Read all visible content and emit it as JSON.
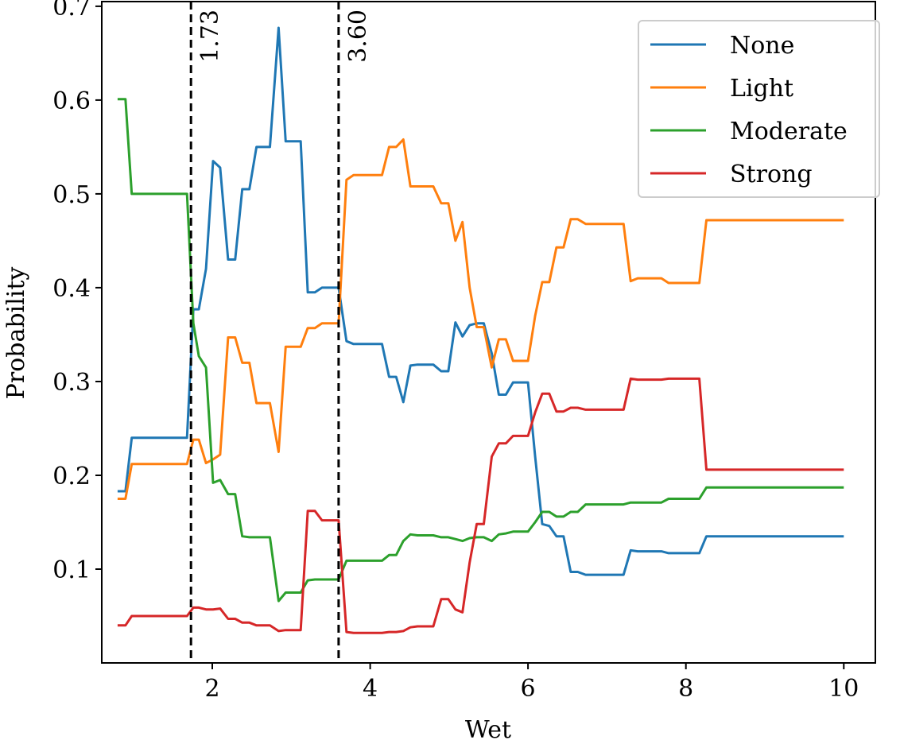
{
  "chart_data": {
    "type": "line",
    "title": "",
    "xlabel": "Wet",
    "ylabel": "Probability",
    "xlim": [
      0.6,
      10.4
    ],
    "ylim": [
      0.0,
      0.705
    ],
    "grid": false,
    "legend_position": "top-right",
    "x_ticks": [
      {
        "value": 2,
        "label": "2"
      },
      {
        "value": 4,
        "label": "4"
      },
      {
        "value": 6,
        "label": "6"
      },
      {
        "value": 8,
        "label": "8"
      },
      {
        "value": 10,
        "label": "10"
      }
    ],
    "y_ticks": [
      {
        "value": 0.1,
        "label": "0.1"
      },
      {
        "value": 0.2,
        "label": "0.2"
      },
      {
        "value": 0.3,
        "label": "0.3"
      },
      {
        "value": 0.4,
        "label": "0.4"
      },
      {
        "value": 0.5,
        "label": "0.5"
      },
      {
        "value": 0.6,
        "label": "0.6"
      },
      {
        "value": 0.7,
        "label": "0.7"
      }
    ],
    "vlines": [
      {
        "x": 1.73,
        "label": "1.73",
        "color": "#000000",
        "style": "dashed"
      },
      {
        "x": 3.6,
        "label": "3.60",
        "color": "#000000",
        "style": "dashed"
      }
    ],
    "series": [
      {
        "name": "None",
        "color": "#1f77b4",
        "points": [
          [
            0.8,
            0.183
          ],
          [
            0.9,
            0.183
          ],
          [
            0.98,
            0.24
          ],
          [
            1.68,
            0.24
          ],
          [
            1.76,
            0.377
          ],
          [
            1.83,
            0.377
          ],
          [
            1.92,
            0.42
          ],
          [
            2.01,
            0.535
          ],
          [
            2.1,
            0.528
          ],
          [
            2.2,
            0.43
          ],
          [
            2.29,
            0.43
          ],
          [
            2.38,
            0.505
          ],
          [
            2.47,
            0.505
          ],
          [
            2.56,
            0.55
          ],
          [
            2.73,
            0.55
          ],
          [
            2.84,
            0.677
          ],
          [
            2.93,
            0.556
          ],
          [
            3.12,
            0.556
          ],
          [
            3.21,
            0.395
          ],
          [
            3.3,
            0.395
          ],
          [
            3.39,
            0.4
          ],
          [
            3.6,
            0.4
          ],
          [
            3.7,
            0.343
          ],
          [
            3.79,
            0.34
          ],
          [
            4.15,
            0.34
          ],
          [
            4.24,
            0.305
          ],
          [
            4.33,
            0.305
          ],
          [
            4.42,
            0.278
          ],
          [
            4.51,
            0.317
          ],
          [
            4.6,
            0.318
          ],
          [
            4.8,
            0.318
          ],
          [
            4.9,
            0.311
          ],
          [
            4.99,
            0.311
          ],
          [
            5.08,
            0.363
          ],
          [
            5.17,
            0.348
          ],
          [
            5.26,
            0.36
          ],
          [
            5.35,
            0.362
          ],
          [
            5.44,
            0.362
          ],
          [
            5.54,
            0.33
          ],
          [
            5.63,
            0.286
          ],
          [
            5.72,
            0.286
          ],
          [
            5.81,
            0.299
          ],
          [
            6.0,
            0.299
          ],
          [
            6.09,
            0.22
          ],
          [
            6.18,
            0.148
          ],
          [
            6.27,
            0.146
          ],
          [
            6.36,
            0.135
          ],
          [
            6.45,
            0.135
          ],
          [
            6.54,
            0.097
          ],
          [
            6.63,
            0.097
          ],
          [
            6.73,
            0.094
          ],
          [
            7.21,
            0.094
          ],
          [
            7.3,
            0.12
          ],
          [
            7.39,
            0.119
          ],
          [
            7.69,
            0.119
          ],
          [
            7.78,
            0.117
          ],
          [
            8.17,
            0.117
          ],
          [
            8.26,
            0.135
          ],
          [
            10.0,
            0.135
          ]
        ]
      },
      {
        "name": "Light",
        "color": "#ff7f0e",
        "points": [
          [
            0.8,
            0.175
          ],
          [
            0.9,
            0.175
          ],
          [
            0.98,
            0.212
          ],
          [
            1.68,
            0.212
          ],
          [
            1.76,
            0.238
          ],
          [
            1.83,
            0.238
          ],
          [
            1.92,
            0.213
          ],
          [
            2.01,
            0.217
          ],
          [
            2.1,
            0.222
          ],
          [
            2.2,
            0.347
          ],
          [
            2.29,
            0.347
          ],
          [
            2.38,
            0.32
          ],
          [
            2.47,
            0.32
          ],
          [
            2.56,
            0.277
          ],
          [
            2.73,
            0.277
          ],
          [
            2.84,
            0.225
          ],
          [
            2.93,
            0.337
          ],
          [
            3.12,
            0.337
          ],
          [
            3.21,
            0.357
          ],
          [
            3.3,
            0.357
          ],
          [
            3.39,
            0.362
          ],
          [
            3.6,
            0.362
          ],
          [
            3.7,
            0.515
          ],
          [
            3.79,
            0.52
          ],
          [
            4.15,
            0.52
          ],
          [
            4.24,
            0.55
          ],
          [
            4.33,
            0.55
          ],
          [
            4.42,
            0.558
          ],
          [
            4.51,
            0.508
          ],
          [
            4.6,
            0.508
          ],
          [
            4.8,
            0.508
          ],
          [
            4.9,
            0.49
          ],
          [
            4.99,
            0.49
          ],
          [
            5.08,
            0.45
          ],
          [
            5.17,
            0.47
          ],
          [
            5.26,
            0.4
          ],
          [
            5.35,
            0.358
          ],
          [
            5.44,
            0.358
          ],
          [
            5.54,
            0.315
          ],
          [
            5.63,
            0.345
          ],
          [
            5.72,
            0.345
          ],
          [
            5.81,
            0.322
          ],
          [
            6.0,
            0.322
          ],
          [
            6.09,
            0.37
          ],
          [
            6.18,
            0.406
          ],
          [
            6.27,
            0.406
          ],
          [
            6.36,
            0.443
          ],
          [
            6.45,
            0.443
          ],
          [
            6.54,
            0.473
          ],
          [
            6.63,
            0.473
          ],
          [
            6.73,
            0.468
          ],
          [
            7.21,
            0.468
          ],
          [
            7.3,
            0.407
          ],
          [
            7.39,
            0.41
          ],
          [
            7.69,
            0.41
          ],
          [
            7.78,
            0.405
          ],
          [
            8.17,
            0.405
          ],
          [
            8.26,
            0.472
          ],
          [
            10.0,
            0.472
          ]
        ]
      },
      {
        "name": "Moderate",
        "color": "#2ca02c",
        "points": [
          [
            0.8,
            0.601
          ],
          [
            0.9,
            0.601
          ],
          [
            0.98,
            0.5
          ],
          [
            1.68,
            0.5
          ],
          [
            1.76,
            0.362
          ],
          [
            1.83,
            0.327
          ],
          [
            1.92,
            0.315
          ],
          [
            2.01,
            0.192
          ],
          [
            2.1,
            0.195
          ],
          [
            2.2,
            0.18
          ],
          [
            2.29,
            0.18
          ],
          [
            2.38,
            0.135
          ],
          [
            2.47,
            0.134
          ],
          [
            2.56,
            0.134
          ],
          [
            2.73,
            0.134
          ],
          [
            2.84,
            0.066
          ],
          [
            2.93,
            0.075
          ],
          [
            3.12,
            0.075
          ],
          [
            3.21,
            0.088
          ],
          [
            3.3,
            0.089
          ],
          [
            3.39,
            0.089
          ],
          [
            3.6,
            0.089
          ],
          [
            3.7,
            0.109
          ],
          [
            3.79,
            0.109
          ],
          [
            4.15,
            0.109
          ],
          [
            4.24,
            0.115
          ],
          [
            4.33,
            0.115
          ],
          [
            4.42,
            0.13
          ],
          [
            4.51,
            0.137
          ],
          [
            4.6,
            0.136
          ],
          [
            4.8,
            0.136
          ],
          [
            4.9,
            0.134
          ],
          [
            4.99,
            0.134
          ],
          [
            5.08,
            0.132
          ],
          [
            5.17,
            0.13
          ],
          [
            5.26,
            0.133
          ],
          [
            5.35,
            0.134
          ],
          [
            5.44,
            0.134
          ],
          [
            5.54,
            0.13
          ],
          [
            5.63,
            0.137
          ],
          [
            5.72,
            0.138
          ],
          [
            5.81,
            0.14
          ],
          [
            6.0,
            0.14
          ],
          [
            6.09,
            0.15
          ],
          [
            6.18,
            0.161
          ],
          [
            6.27,
            0.161
          ],
          [
            6.36,
            0.156
          ],
          [
            6.45,
            0.156
          ],
          [
            6.54,
            0.161
          ],
          [
            6.63,
            0.161
          ],
          [
            6.73,
            0.169
          ],
          [
            7.21,
            0.169
          ],
          [
            7.3,
            0.171
          ],
          [
            7.39,
            0.171
          ],
          [
            7.69,
            0.171
          ],
          [
            7.78,
            0.175
          ],
          [
            8.17,
            0.175
          ],
          [
            8.26,
            0.187
          ],
          [
            10.0,
            0.187
          ]
        ]
      },
      {
        "name": "Strong",
        "color": "#d62728",
        "points": [
          [
            0.8,
            0.04
          ],
          [
            0.9,
            0.04
          ],
          [
            0.98,
            0.05
          ],
          [
            1.68,
            0.05
          ],
          [
            1.76,
            0.059
          ],
          [
            1.83,
            0.059
          ],
          [
            1.92,
            0.057
          ],
          [
            2.01,
            0.057
          ],
          [
            2.1,
            0.058
          ],
          [
            2.2,
            0.047
          ],
          [
            2.29,
            0.047
          ],
          [
            2.38,
            0.043
          ],
          [
            2.47,
            0.043
          ],
          [
            2.56,
            0.04
          ],
          [
            2.73,
            0.04
          ],
          [
            2.84,
            0.034
          ],
          [
            2.93,
            0.035
          ],
          [
            3.12,
            0.035
          ],
          [
            3.21,
            0.162
          ],
          [
            3.3,
            0.162
          ],
          [
            3.39,
            0.152
          ],
          [
            3.6,
            0.152
          ],
          [
            3.7,
            0.033
          ],
          [
            3.79,
            0.032
          ],
          [
            4.15,
            0.032
          ],
          [
            4.24,
            0.033
          ],
          [
            4.33,
            0.033
          ],
          [
            4.42,
            0.034
          ],
          [
            4.51,
            0.038
          ],
          [
            4.6,
            0.039
          ],
          [
            4.8,
            0.039
          ],
          [
            4.9,
            0.068
          ],
          [
            4.99,
            0.068
          ],
          [
            5.08,
            0.057
          ],
          [
            5.17,
            0.054
          ],
          [
            5.26,
            0.107
          ],
          [
            5.35,
            0.148
          ],
          [
            5.44,
            0.148
          ],
          [
            5.54,
            0.22
          ],
          [
            5.63,
            0.234
          ],
          [
            5.72,
            0.234
          ],
          [
            5.81,
            0.242
          ],
          [
            6.0,
            0.242
          ],
          [
            6.09,
            0.267
          ],
          [
            6.18,
            0.287
          ],
          [
            6.27,
            0.287
          ],
          [
            6.36,
            0.268
          ],
          [
            6.45,
            0.268
          ],
          [
            6.54,
            0.272
          ],
          [
            6.63,
            0.272
          ],
          [
            6.73,
            0.27
          ],
          [
            7.21,
            0.27
          ],
          [
            7.3,
            0.303
          ],
          [
            7.39,
            0.302
          ],
          [
            7.69,
            0.302
          ],
          [
            7.78,
            0.303
          ],
          [
            8.17,
            0.303
          ],
          [
            8.26,
            0.206
          ],
          [
            10.0,
            0.206
          ]
        ]
      }
    ]
  }
}
